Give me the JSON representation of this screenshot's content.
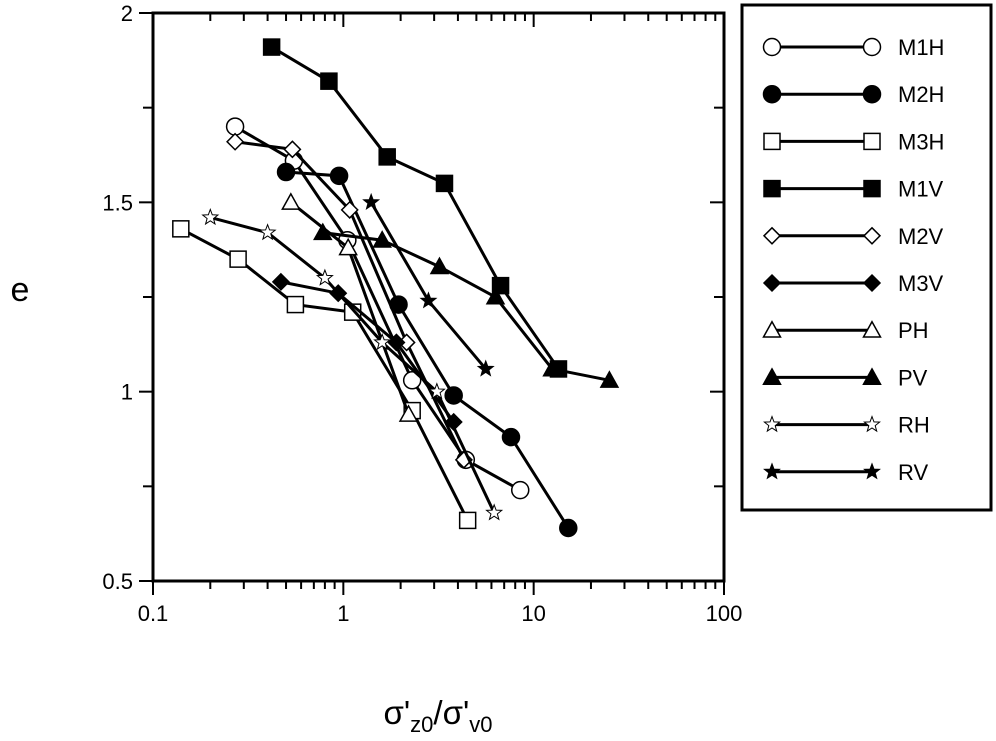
{
  "chart_data": {
    "type": "scatter",
    "title": "",
    "xlabel": {
      "base": "σ'",
      "sub1": "z0",
      "sep": "/σ'",
      "sub2": "v0"
    },
    "ylabel": "e",
    "x_scale": "log",
    "xlim": [
      0.1,
      100
    ],
    "ylim": [
      0.5,
      2
    ],
    "x_ticks": [
      0.1,
      1,
      10,
      100
    ],
    "x_tick_labels": [
      "0.1",
      "1",
      "10",
      "100"
    ],
    "y_ticks": [
      0.5,
      1,
      1.5,
      2
    ],
    "y_tick_labels": [
      "0.5",
      "1",
      "1.5",
      "2"
    ],
    "grid": false,
    "legend_position": "right",
    "series": [
      {
        "name": "M1H",
        "marker": "circle",
        "filled": false,
        "points": [
          [
            0.27,
            1.7
          ],
          [
            0.55,
            1.61
          ],
          [
            1.05,
            1.4
          ],
          [
            2.3,
            1.03
          ],
          [
            4.4,
            0.82
          ],
          [
            8.5,
            0.74
          ]
        ]
      },
      {
        "name": "M2H",
        "marker": "circle",
        "filled": true,
        "points": [
          [
            0.5,
            1.58
          ],
          [
            0.95,
            1.57
          ],
          [
            1.95,
            1.23
          ],
          [
            3.8,
            0.99
          ],
          [
            7.6,
            0.88
          ],
          [
            15.2,
            0.64
          ]
        ]
      },
      {
        "name": "M3H",
        "marker": "square",
        "filled": false,
        "points": [
          [
            0.14,
            1.43
          ],
          [
            0.28,
            1.35
          ],
          [
            0.56,
            1.23
          ],
          [
            1.12,
            1.21
          ],
          [
            2.3,
            0.95
          ],
          [
            4.5,
            0.66
          ]
        ]
      },
      {
        "name": "M1V",
        "marker": "square",
        "filled": true,
        "points": [
          [
            0.42,
            1.91
          ],
          [
            0.84,
            1.82
          ],
          [
            1.7,
            1.62
          ],
          [
            3.4,
            1.55
          ],
          [
            6.7,
            1.28
          ],
          [
            13.5,
            1.06
          ]
        ]
      },
      {
        "name": "M2V",
        "marker": "diamond",
        "filled": false,
        "points": [
          [
            0.27,
            1.66
          ],
          [
            0.54,
            1.64
          ],
          [
            1.08,
            1.48
          ],
          [
            2.15,
            1.13
          ],
          [
            4.3,
            0.82
          ]
        ]
      },
      {
        "name": "M3V",
        "marker": "diamond",
        "filled": true,
        "points": [
          [
            0.47,
            1.29
          ],
          [
            0.94,
            1.26
          ],
          [
            1.9,
            1.13
          ],
          [
            3.8,
            0.92
          ]
        ]
      },
      {
        "name": "PH",
        "marker": "triangle",
        "filled": false,
        "points": [
          [
            0.53,
            1.5
          ],
          [
            1.06,
            1.38
          ],
          [
            2.2,
            0.94
          ]
        ]
      },
      {
        "name": "PV",
        "marker": "triangle",
        "filled": true,
        "points": [
          [
            0.78,
            1.42
          ],
          [
            1.6,
            1.4
          ],
          [
            3.2,
            1.33
          ],
          [
            6.3,
            1.25
          ],
          [
            12.5,
            1.06
          ],
          [
            25,
            1.03
          ]
        ]
      },
      {
        "name": "RH",
        "marker": "star",
        "filled": false,
        "points": [
          [
            0.2,
            1.46
          ],
          [
            0.4,
            1.42
          ],
          [
            0.8,
            1.3
          ],
          [
            1.6,
            1.13
          ],
          [
            3.1,
            1.0
          ],
          [
            6.2,
            0.68
          ]
        ]
      },
      {
        "name": "RV",
        "marker": "star",
        "filled": true,
        "points": [
          [
            1.4,
            1.5
          ],
          [
            2.8,
            1.24
          ],
          [
            5.6,
            1.06
          ]
        ]
      }
    ]
  }
}
